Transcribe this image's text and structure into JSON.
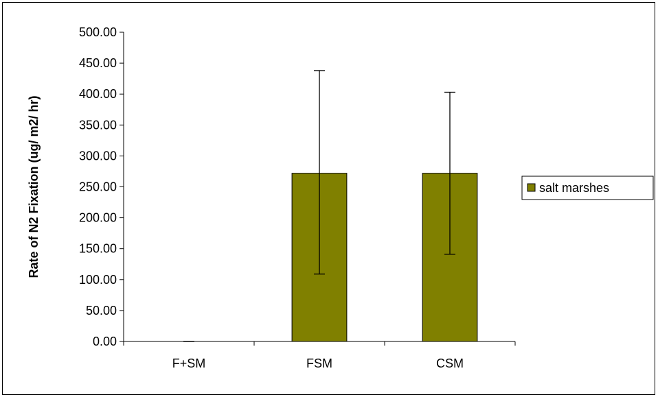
{
  "chart_data": {
    "type": "bar",
    "title": "",
    "xlabel": "",
    "ylabel": "Rate of N2 Fixation (ug/ m2/ hr)",
    "categories": [
      "F+SM",
      "FSM",
      "CSM"
    ],
    "series": [
      {
        "name": "salt marshes",
        "color": "#808000",
        "values": [
          0.0,
          272.0,
          272.0
        ],
        "error_low": [
          0.0,
          109.0,
          141.0
        ],
        "error_high": [
          0.0,
          438.0,
          403.0
        ]
      }
    ],
    "ylim": [
      0,
      500
    ],
    "yticks": [
      "0.00",
      "50.00",
      "100.00",
      "150.00",
      "200.00",
      "250.00",
      "300.00",
      "350.00",
      "400.00",
      "450.00",
      "500.00"
    ],
    "grid": false,
    "legend_position": "right"
  }
}
